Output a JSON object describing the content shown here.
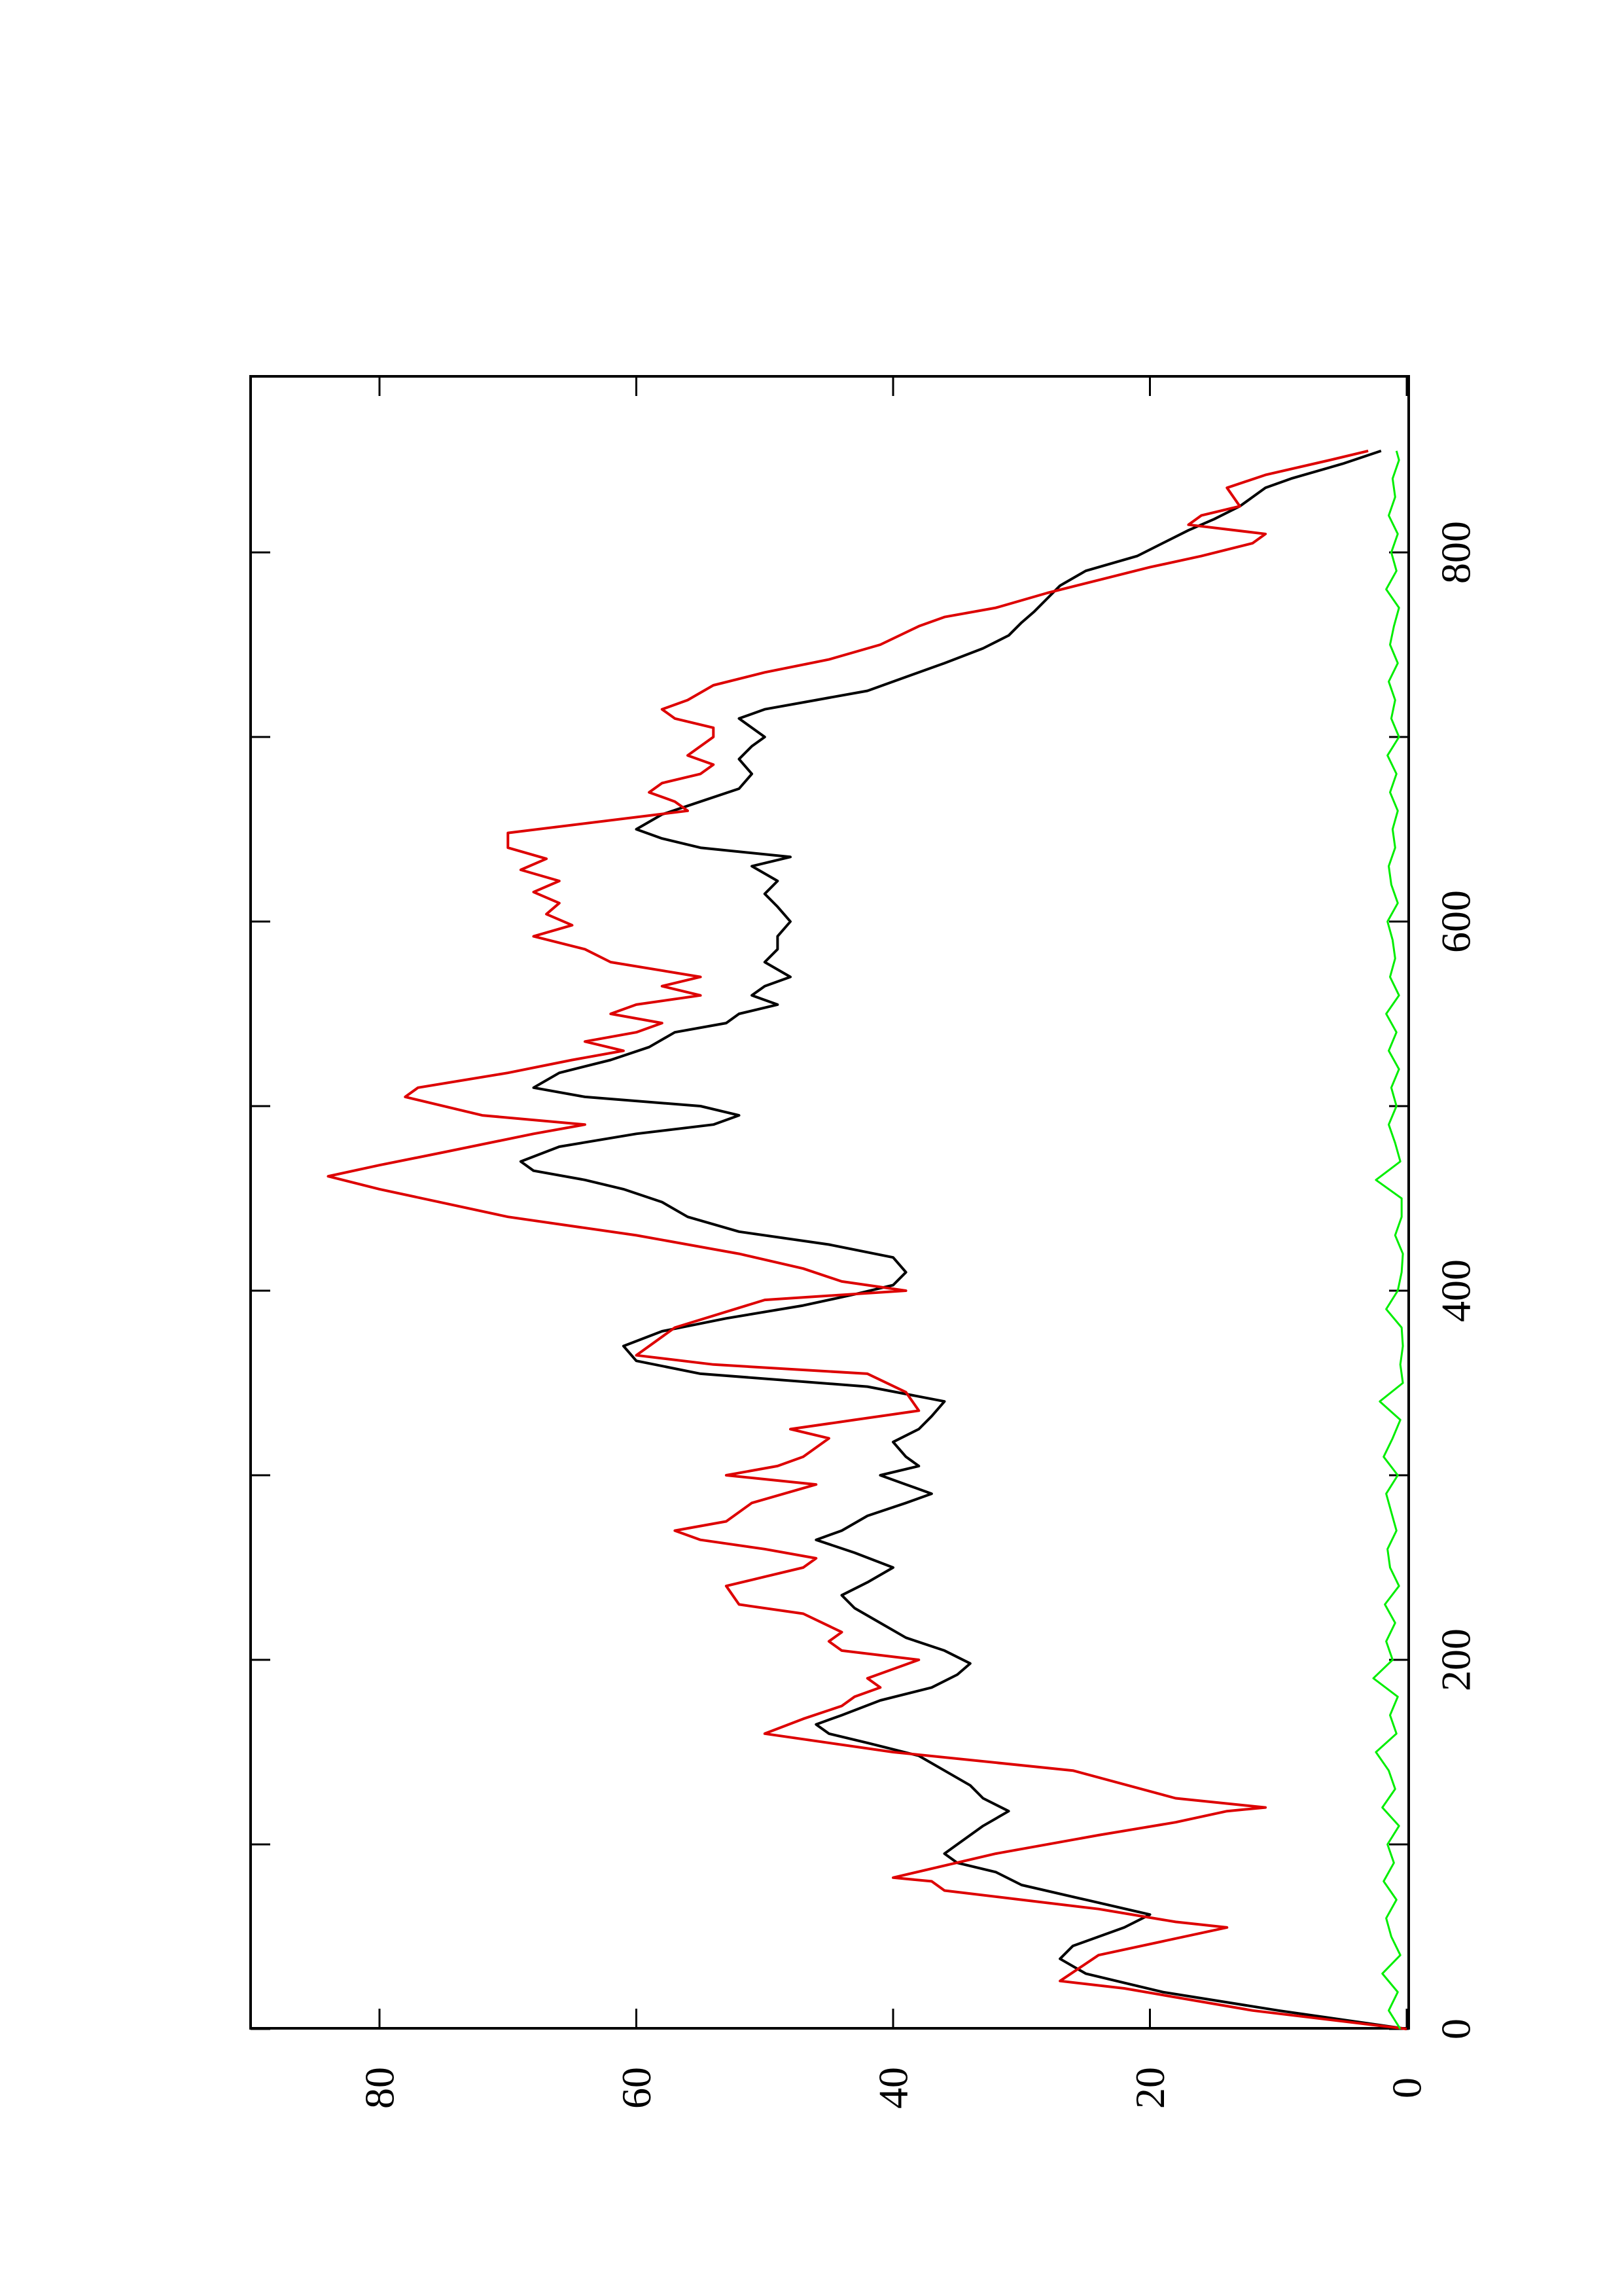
{
  "chart_data": {
    "type": "line",
    "orientation": "rotated-90-ccw",
    "title": "",
    "xlabel": "",
    "ylabel": "",
    "xlim": [
      0,
      900
    ],
    "ylim": [
      0,
      91
    ],
    "x_ticks": [
      0,
      200,
      400,
      600,
      800
    ],
    "x_minor_ticks": [
      100,
      300,
      500,
      700
    ],
    "y_ticks": [
      0,
      20,
      40,
      60,
      80
    ],
    "x_tick_labels": [
      "0",
      "200",
      "400",
      "600",
      "800"
    ],
    "y_tick_labels": [
      "0",
      "20",
      "40",
      "60",
      "80"
    ],
    "grid": false,
    "legend": "none",
    "series": [
      {
        "color": "#000000",
        "x": [
          0,
          10,
          20,
          30,
          38,
          45,
          55,
          62,
          70,
          78,
          85,
          90,
          95,
          100,
          110,
          118,
          125,
          132,
          140,
          148,
          155,
          160,
          165,
          170,
          178,
          185,
          192,
          198,
          205,
          212,
          220,
          228,
          235,
          242,
          250,
          258,
          265,
          270,
          278,
          285,
          290,
          295,
          300,
          305,
          310,
          318,
          325,
          332,
          340,
          348,
          355,
          362,
          370,
          378,
          385,
          392,
          398,
          403,
          410,
          418,
          425,
          432,
          440,
          448,
          455,
          460,
          465,
          470,
          478,
          485,
          490,
          495,
          500,
          505,
          510,
          518,
          525,
          532,
          540,
          545,
          550,
          555,
          560,
          565,
          570,
          578,
          585,
          592,
          600,
          608,
          615,
          622,
          630,
          635,
          640,
          645,
          650,
          658,
          665,
          672,
          680,
          688,
          695,
          700,
          705,
          710,
          715,
          720,
          725,
          730,
          740,
          748,
          755,
          762,
          768,
          775,
          782,
          790,
          798,
          805,
          812,
          818,
          825,
          830,
          835,
          840,
          848,
          855
        ],
        "y": [
          0,
          10,
          19,
          25,
          27,
          26,
          22,
          20,
          25,
          30,
          32,
          35,
          36,
          35,
          33,
          31,
          33,
          34,
          36,
          38,
          42,
          45,
          46,
          44,
          41,
          37,
          35,
          34,
          36,
          39,
          41,
          43,
          44,
          42,
          40,
          43,
          46,
          44,
          42,
          39,
          37,
          39,
          41,
          38,
          39,
          40,
          38,
          37,
          36,
          42,
          55,
          60,
          61,
          58,
          53,
          47,
          43,
          40,
          39,
          40,
          45,
          52,
          56,
          58,
          61,
          64,
          68,
          69,
          66,
          60,
          54,
          52,
          55,
          64,
          68,
          66,
          62,
          59,
          57,
          53,
          52,
          49,
          51,
          50,
          48,
          50,
          49,
          49,
          48,
          49,
          50,
          49,
          51,
          48,
          55,
          58,
          60,
          58,
          55,
          52,
          51,
          52,
          51,
          50,
          51,
          52,
          50,
          46,
          42,
          40,
          36,
          33,
          31,
          30,
          29,
          28,
          27,
          25,
          21,
          19,
          17,
          15,
          13,
          12,
          11,
          9,
          5,
          2
        ]
      },
      {
        "color": "#dd0000",
        "x": [
          0,
          10,
          22,
          26,
          26,
          40,
          55,
          58,
          65,
          70,
          75,
          80,
          82,
          95,
          105,
          112,
          118,
          120,
          125,
          140,
          150,
          160,
          168,
          175,
          180,
          185,
          190,
          195,
          200,
          205,
          210,
          215,
          225,
          230,
          240,
          245,
          250,
          255,
          260,
          265,
          270,
          275,
          285,
          295,
          300,
          305,
          310,
          320,
          325,
          330,
          335,
          345,
          355,
          360,
          365,
          380,
          395,
          400,
          405,
          412,
          420,
          430,
          440,
          455,
          462,
          468,
          475,
          485,
          490,
          495,
          505,
          510,
          518,
          525,
          530,
          535,
          540,
          545,
          550,
          555,
          560,
          565,
          570,
          578,
          585,
          592,
          598,
          604,
          610,
          616,
          622,
          628,
          634,
          640,
          648,
          660,
          665,
          670,
          675,
          680,
          685,
          690,
          695,
          700,
          705,
          710,
          715,
          720,
          728,
          735,
          742,
          750,
          760,
          765,
          770,
          778,
          785,
          792,
          798,
          805,
          810,
          815,
          820,
          825,
          835,
          842,
          850,
          855
        ],
        "y": [
          0,
          12,
          22,
          27,
          27,
          24,
          14,
          18,
          24,
          30,
          36,
          37,
          40,
          32,
          24,
          18,
          14,
          11,
          18,
          26,
          40,
          50,
          47,
          44,
          43,
          41,
          42,
          40,
          38,
          44,
          45,
          44,
          47,
          52,
          53,
          50,
          47,
          46,
          50,
          55,
          57,
          53,
          51,
          46,
          53,
          49,
          47,
          45,
          48,
          43,
          38,
          39,
          42,
          54,
          60,
          57,
          50,
          39,
          44,
          47,
          52,
          60,
          70,
          80,
          84,
          80,
          75,
          68,
          64,
          72,
          78,
          77,
          70,
          65,
          61,
          64,
          60,
          58,
          62,
          60,
          55,
          58,
          55,
          62,
          64,
          68,
          65,
          67,
          66,
          68,
          66,
          69,
          67,
          70,
          70,
          56,
          57,
          59,
          58,
          55,
          54,
          56,
          55,
          54,
          54,
          57,
          58,
          56,
          54,
          50,
          45,
          41,
          38,
          36,
          32,
          28,
          24,
          20,
          16,
          12,
          11,
          17,
          16,
          13,
          14,
          11,
          6,
          3
        ]
      },
      {
        "color": "#00ee00",
        "x": [
          0,
          10,
          20,
          30,
          40,
          50,
          60,
          70,
          80,
          90,
          100,
          110,
          120,
          130,
          140,
          150,
          160,
          170,
          180,
          190,
          200,
          210,
          220,
          230,
          240,
          250,
          260,
          270,
          280,
          290,
          300,
          310,
          320,
          330,
          340,
          350,
          360,
          370,
          380,
          390,
          400,
          410,
          420,
          430,
          440,
          450,
          460,
          470,
          480,
          490,
          500,
          510,
          520,
          530,
          540,
          550,
          560,
          570,
          580,
          590,
          600,
          610,
          620,
          630,
          640,
          650,
          660,
          670,
          680,
          690,
          700,
          710,
          720,
          730,
          740,
          750,
          760,
          770,
          780,
          790,
          800,
          810,
          820,
          830,
          840,
          850,
          855
        ],
        "y": [
          0.5,
          1.4,
          0.7,
          1.9,
          0.5,
          1.2,
          1.6,
          0.8,
          1.8,
          1.0,
          1.5,
          0.6,
          1.9,
          0.9,
          1.4,
          2.4,
          0.8,
          1.3,
          0.7,
          2.6,
          1.1,
          1.6,
          0.9,
          1.7,
          0.6,
          1.3,
          1.5,
          0.8,
          1.2,
          1.6,
          0.7,
          1.8,
          1.1,
          0.5,
          2.1,
          0.3,
          0.5,
          0.3,
          0.4,
          1.6,
          0.7,
          0.4,
          0.3,
          0.9,
          0.4,
          0.4,
          2.4,
          0.5,
          0.9,
          1.4,
          0.8,
          1.2,
          0.6,
          1.4,
          0.8,
          1.6,
          0.6,
          1.3,
          0.9,
          1.1,
          1.5,
          0.7,
          1.2,
          1.4,
          0.9,
          1.1,
          0.7,
          1.3,
          0.8,
          1.5,
          0.6,
          1.2,
          0.9,
          1.4,
          0.7,
          1.3,
          1.0,
          0.6,
          1.6,
          0.8,
          1.2,
          0.7,
          1.4,
          0.9,
          1.1,
          0.6,
          0.8
        ]
      }
    ]
  }
}
